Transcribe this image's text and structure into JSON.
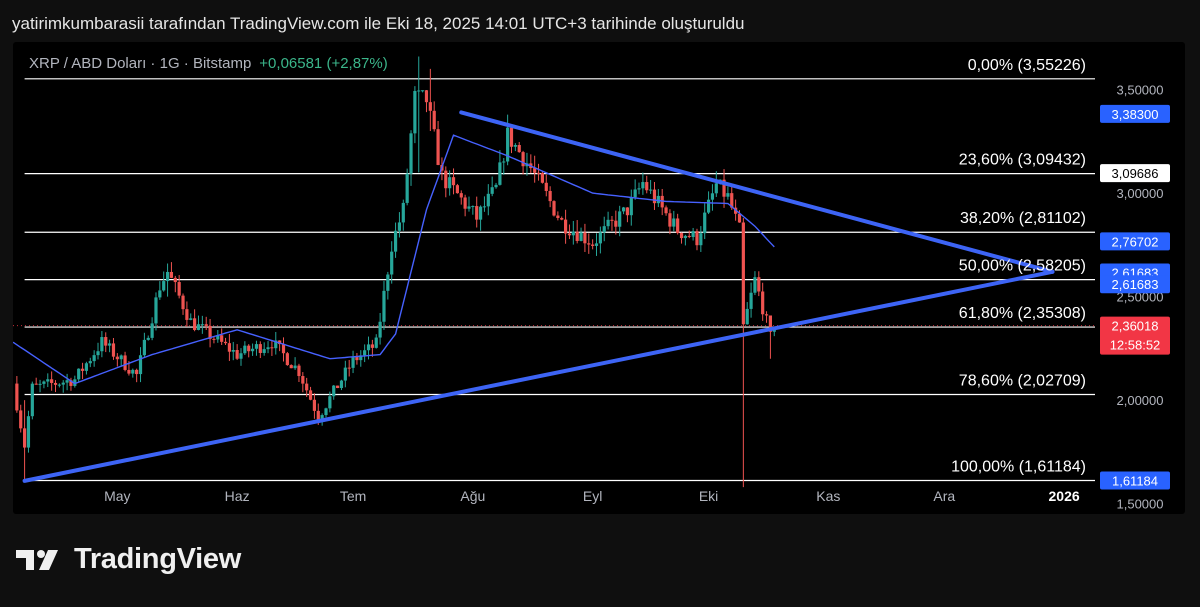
{
  "caption": "yatirimkumbarasii tarafından TradingView.com ile Eki 18, 2025 14:01 UTC+3 tarihinde oluşturuldu",
  "header": {
    "symbol": "XRP / ABD Doları · 1G · Bitstamp",
    "change": "+0,06581 (+2,87%)"
  },
  "brand": {
    "name": "TradingView",
    "logo_icon": "tradingview-logo-icon"
  },
  "colors": {
    "up": "#26a69a",
    "down": "#ef5350",
    "ma": "#4661ff",
    "trendline": "#3d64f5",
    "fib": "#ffffff",
    "price_badge": "#f23645",
    "blue_badge": "#2962ff"
  },
  "chart_data": {
    "type": "candlestick",
    "ylim": [
      1.45,
      3.73
    ],
    "y_ticks": [
      {
        "value": 3.5,
        "label": "3,50000"
      },
      {
        "value": 3.0,
        "label": "3,00000"
      },
      {
        "value": 2.5,
        "label": "2,50000"
      },
      {
        "value": 2.0,
        "label": "2,00000"
      },
      {
        "value": 1.5,
        "label": "1,50000"
      }
    ],
    "x_ticks": [
      {
        "date": "2025-05-01",
        "label": "May"
      },
      {
        "date": "2025-06-01",
        "label": "Haz"
      },
      {
        "date": "2025-07-01",
        "label": "Tem"
      },
      {
        "date": "2025-08-01",
        "label": "Ağu"
      },
      {
        "date": "2025-09-01",
        "label": "Eyl"
      },
      {
        "date": "2025-10-01",
        "label": "Eki"
      },
      {
        "date": "2025-11-01",
        "label": "Kas"
      },
      {
        "date": "2025-12-01",
        "label": "Ara"
      },
      {
        "date": "2026-01-01",
        "label": "2026",
        "bold": true
      }
    ],
    "x_range": [
      "2025-04-04",
      "2026-01-09"
    ],
    "fib_levels": [
      {
        "label": "0,00% (3,55226)",
        "value": 3.55226
      },
      {
        "label": "23,60% (3,09432)",
        "value": 3.09432
      },
      {
        "label": "38,20% (2,81102)",
        "value": 2.81102
      },
      {
        "label": "50,00% (2,58205)",
        "value": 2.58205
      },
      {
        "label": "61,80% (2,35308)",
        "value": 2.35308
      },
      {
        "label": "78,60% (2,02709)",
        "value": 2.02709
      },
      {
        "label": "100,00% (1,61184)",
        "value": 1.61184
      }
    ],
    "fib_start": "2025-04-07",
    "trendlines": [
      {
        "name": "upper",
        "points": [
          [
            "2025-07-29",
            3.39
          ],
          [
            "2025-12-29",
            2.62
          ]
        ]
      },
      {
        "name": "lower",
        "points": [
          [
            "2025-04-07",
            1.61
          ],
          [
            "2025-12-29",
            2.62
          ]
        ]
      }
    ],
    "price_badges": [
      {
        "label": "3,38300",
        "value": 3.383,
        "style": "blue"
      },
      {
        "label": "3,09686",
        "value": 3.09686,
        "style": "white"
      },
      {
        "label": "2,76702",
        "value": 2.76702,
        "style": "blue"
      },
      {
        "label": "2,61683",
        "value": 2.61683,
        "style": "blue"
      },
      {
        "label": "2,61683",
        "value": 2.56,
        "style": "blue"
      },
      {
        "label": "2,36018",
        "value": 2.36018,
        "style": "red",
        "sub": "12:58:52"
      },
      {
        "label": "1,61184",
        "value": 1.61184,
        "style": "blue"
      }
    ],
    "last_price": 2.36018,
    "close_anchors": [
      [
        "2025-04-04",
        2.08
      ],
      [
        "2025-04-07",
        1.78
      ],
      [
        "2025-04-09",
        2.06
      ],
      [
        "2025-04-20",
        2.1
      ],
      [
        "2025-04-27",
        2.28
      ],
      [
        "2025-05-06",
        2.12
      ],
      [
        "2025-05-12",
        2.55
      ],
      [
        "2025-05-14",
        2.62
      ],
      [
        "2025-05-20",
        2.38
      ],
      [
        "2025-06-01",
        2.22
      ],
      [
        "2025-06-10",
        2.28
      ],
      [
        "2025-06-17",
        2.14
      ],
      [
        "2025-06-22",
        1.92
      ],
      [
        "2025-07-01",
        2.19
      ],
      [
        "2025-07-07",
        2.27
      ],
      [
        "2025-07-11",
        2.75
      ],
      [
        "2025-07-14",
        2.92
      ],
      [
        "2025-07-17",
        3.46
      ],
      [
        "2025-07-20",
        3.45
      ],
      [
        "2025-07-24",
        3.08
      ],
      [
        "2025-08-02",
        2.88
      ],
      [
        "2025-08-07",
        3.02
      ],
      [
        "2025-08-10",
        3.28
      ],
      [
        "2025-08-16",
        3.12
      ],
      [
        "2025-08-24",
        2.86
      ],
      [
        "2025-09-01",
        2.76
      ],
      [
        "2025-09-10",
        2.92
      ],
      [
        "2025-09-14",
        3.05
      ],
      [
        "2025-09-23",
        2.82
      ],
      [
        "2025-09-28",
        2.78
      ],
      [
        "2025-10-03",
        3.04
      ],
      [
        "2025-10-06",
        2.98
      ],
      [
        "2025-10-09",
        2.82
      ],
      [
        "2025-10-10",
        2.35
      ],
      [
        "2025-10-13",
        2.58
      ],
      [
        "2025-10-15",
        2.45
      ],
      [
        "2025-10-17",
        2.3
      ],
      [
        "2025-10-18",
        2.36
      ]
    ],
    "wick_overrides": [
      [
        "2025-04-07",
        1.61,
        2.0
      ],
      [
        "2025-07-18",
        3.1,
        3.66
      ],
      [
        "2025-07-21",
        3.3,
        3.6
      ],
      [
        "2025-10-10",
        1.58,
        2.88
      ],
      [
        "2025-10-17",
        2.2,
        2.4
      ],
      [
        "2025-05-14",
        2.5,
        2.66
      ]
    ],
    "ma_anchors": [
      [
        "2025-04-04",
        2.28
      ],
      [
        "2025-04-20",
        2.08
      ],
      [
        "2025-05-10",
        2.22
      ],
      [
        "2025-06-01",
        2.34
      ],
      [
        "2025-06-25",
        2.2
      ],
      [
        "2025-07-08",
        2.22
      ],
      [
        "2025-07-12",
        2.32
      ],
      [
        "2025-07-20",
        2.92
      ],
      [
        "2025-07-27",
        3.28
      ],
      [
        "2025-08-10",
        3.18
      ],
      [
        "2025-09-01",
        3.0
      ],
      [
        "2025-09-20",
        2.96
      ],
      [
        "2025-10-06",
        2.95
      ],
      [
        "2025-10-13",
        2.84
      ],
      [
        "2025-10-18",
        2.74
      ]
    ]
  }
}
